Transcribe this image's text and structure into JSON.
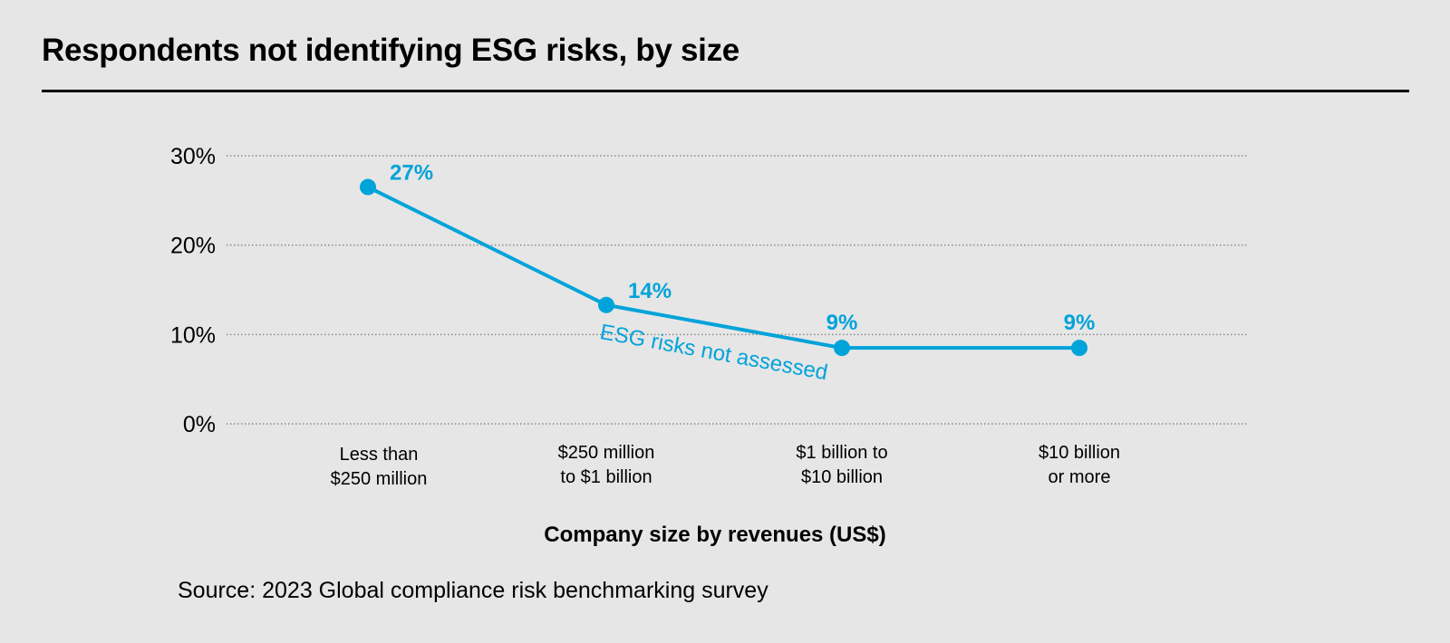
{
  "header": {
    "title": "Respondents not identifying ESG risks, by size"
  },
  "footer": {
    "source": "Source: 2023 Global compliance risk benchmarking survey"
  },
  "colors": {
    "series": "#00a3da",
    "text": "#000000",
    "grid": "#8a8a8a",
    "background": "#e6e6e6"
  },
  "chart_data": {
    "type": "line",
    "title": "Respondents not identifying ESG risks, by size",
    "xlabel": "Company size by revenues (US$)",
    "ylabel": "",
    "ylim": [
      0,
      30
    ],
    "yticks": [
      0,
      10,
      20,
      30
    ],
    "ytick_labels": [
      "0%",
      "10%",
      "20%",
      "30%"
    ],
    "grid": true,
    "categories": [
      [
        "Less than",
        "$250 million"
      ],
      [
        "$250 million",
        "to $1 billion"
      ],
      [
        "$1 billion to",
        "$10 billion"
      ],
      [
        "$10 billion",
        "or more"
      ]
    ],
    "series": [
      {
        "name": "ESG risks not assessed",
        "values": [
          27,
          14,
          9,
          9
        ],
        "data_labels": [
          "27%",
          "14%",
          "9%",
          "9%"
        ]
      }
    ],
    "annotations": [
      "ESG risks not assessed"
    ],
    "legend": "inline-annotation"
  }
}
